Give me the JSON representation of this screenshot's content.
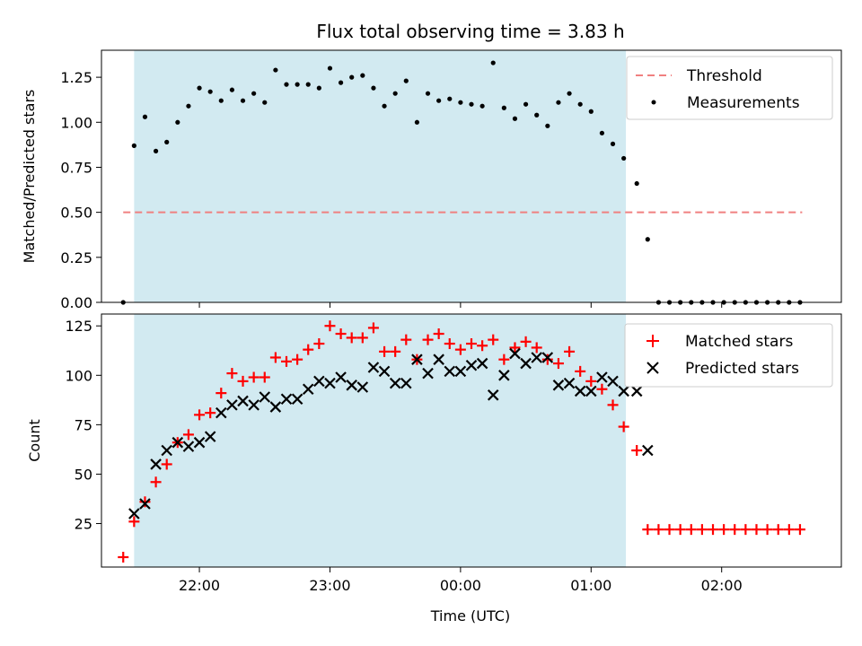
{
  "figure_title": "Flux total observing time = 3.83 h",
  "colors": {
    "band": "#add8e6",
    "threshold": "#f08080",
    "measurements": "#000000",
    "matched": "#ff0000",
    "predicted": "#000000"
  },
  "chart_data": [
    {
      "type": "scatter",
      "title": "Flux total observing time = 3.83 h",
      "xlabel": "",
      "ylabel": "Matched/Predicted stars",
      "xlim": [
        "21:15",
        "02:55"
      ],
      "ylim": [
        0,
        1.4
      ],
      "yticks": [
        "0.00",
        "0.25",
        "0.50",
        "0.75",
        "1.00",
        "1.25"
      ],
      "grid": false,
      "legend": "top-right",
      "shaded_span": [
        "21:30",
        "01:16"
      ],
      "threshold": {
        "name": "Threshold",
        "y": 0.5,
        "x": [
          "21:25",
          "02:37"
        ]
      },
      "series": [
        {
          "name": "Measurements",
          "x": [
            "21:25",
            "21:30",
            "21:35",
            "21:40",
            "21:45",
            "21:50",
            "21:55",
            "22:00",
            "22:05",
            "22:10",
            "22:15",
            "22:20",
            "22:25",
            "22:30",
            "22:35",
            "22:40",
            "22:45",
            "22:50",
            "22:55",
            "23:00",
            "23:05",
            "23:10",
            "23:15",
            "23:20",
            "23:25",
            "23:30",
            "23:35",
            "23:40",
            "23:45",
            "23:50",
            "23:55",
            "00:00",
            "00:05",
            "00:10",
            "00:15",
            "00:20",
            "00:25",
            "00:30",
            "00:35",
            "00:40",
            "00:45",
            "00:50",
            "00:55",
            "01:00",
            "01:05",
            "01:10",
            "01:15",
            "01:21",
            "01:26",
            "01:31",
            "01:36",
            "01:41",
            "01:46",
            "01:51",
            "01:56",
            "02:01",
            "02:06",
            "02:11",
            "02:16",
            "02:21",
            "02:26",
            "02:31",
            "02:36"
          ],
          "y": [
            0.0,
            0.87,
            1.03,
            0.84,
            0.89,
            1.0,
            1.09,
            1.19,
            1.17,
            1.12,
            1.18,
            1.12,
            1.16,
            1.11,
            1.29,
            1.21,
            1.21,
            1.21,
            1.19,
            1.3,
            1.22,
            1.25,
            1.26,
            1.19,
            1.09,
            1.16,
            1.23,
            1.0,
            1.16,
            1.12,
            1.13,
            1.11,
            1.1,
            1.09,
            1.33,
            1.08,
            1.02,
            1.1,
            1.04,
            0.98,
            1.11,
            1.16,
            1.1,
            1.06,
            0.94,
            0.88,
            0.8,
            0.66,
            0.35,
            0.0,
            0.0,
            0.0,
            0.0,
            0.0,
            0.0,
            0.0,
            0.0,
            0.0,
            0.0,
            0.0,
            0.0,
            0.0,
            0.0
          ]
        }
      ]
    },
    {
      "type": "scatter",
      "title": "",
      "xlabel": "Time (UTC)",
      "ylabel": "Count",
      "xlim": [
        "21:15",
        "02:55"
      ],
      "ylim": [
        3,
        131
      ],
      "yticks": [
        "25",
        "50",
        "75",
        "100",
        "125"
      ],
      "xticks": [
        "22:00",
        "23:00",
        "00:00",
        "01:00",
        "02:00"
      ],
      "grid": false,
      "legend": "top-right",
      "shaded_span": [
        "21:30",
        "01:16"
      ],
      "series": [
        {
          "name": "Matched stars",
          "marker": "plus",
          "x": [
            "21:25",
            "21:30",
            "21:35",
            "21:40",
            "21:45",
            "21:50",
            "21:55",
            "22:00",
            "22:05",
            "22:10",
            "22:15",
            "22:20",
            "22:25",
            "22:30",
            "22:35",
            "22:40",
            "22:45",
            "22:50",
            "22:55",
            "23:00",
            "23:05",
            "23:10",
            "23:15",
            "23:20",
            "23:25",
            "23:30",
            "23:35",
            "23:40",
            "23:45",
            "23:50",
            "23:55",
            "00:00",
            "00:05",
            "00:10",
            "00:15",
            "00:20",
            "00:25",
            "00:30",
            "00:35",
            "00:40",
            "00:45",
            "00:50",
            "00:55",
            "01:00",
            "01:05",
            "01:10",
            "01:15",
            "01:21",
            "01:26",
            "01:31",
            "01:36",
            "01:41",
            "01:46",
            "01:51",
            "01:56",
            "02:01",
            "02:06",
            "02:11",
            "02:16",
            "02:21",
            "02:26",
            "02:31",
            "02:36"
          ],
          "y": [
            8,
            26,
            36,
            46,
            55,
            66,
            70,
            80,
            81,
            91,
            101,
            97,
            99,
            99,
            109,
            107,
            108,
            113,
            116,
            125,
            121,
            119,
            119,
            124,
            112,
            112,
            118,
            108,
            118,
            121,
            116,
            113,
            116,
            115,
            118,
            108,
            114,
            117,
            114,
            108,
            106,
            112,
            102,
            97,
            93,
            85,
            74,
            62,
            22,
            22,
            22,
            22,
            22,
            22,
            22,
            22,
            22,
            22,
            22,
            22,
            22,
            22,
            22
          ]
        },
        {
          "name": "Predicted stars",
          "marker": "x",
          "x": [
            "21:30",
            "21:35",
            "21:40",
            "21:45",
            "21:50",
            "21:55",
            "22:00",
            "22:05",
            "22:10",
            "22:15",
            "22:20",
            "22:25",
            "22:30",
            "22:35",
            "22:40",
            "22:45",
            "22:50",
            "22:55",
            "23:00",
            "23:05",
            "23:10",
            "23:15",
            "23:20",
            "23:25",
            "23:30",
            "23:35",
            "23:40",
            "23:45",
            "23:50",
            "23:55",
            "00:00",
            "00:05",
            "00:10",
            "00:15",
            "00:20",
            "00:25",
            "00:30",
            "00:35",
            "00:40",
            "00:45",
            "00:50",
            "00:55",
            "01:00",
            "01:05",
            "01:10",
            "01:15",
            "01:21",
            "01:26"
          ],
          "y": [
            30,
            35,
            55,
            62,
            66,
            64,
            66,
            69,
            81,
            85,
            87,
            85,
            89,
            84,
            88,
            88,
            93,
            97,
            96,
            99,
            95,
            94,
            104,
            102,
            96,
            96,
            108,
            101,
            108,
            102,
            102,
            105,
            106,
            90,
            100,
            111,
            106,
            109,
            109,
            95,
            96,
            92,
            92,
            99,
            97,
            92,
            92,
            62
          ]
        }
      ]
    }
  ]
}
